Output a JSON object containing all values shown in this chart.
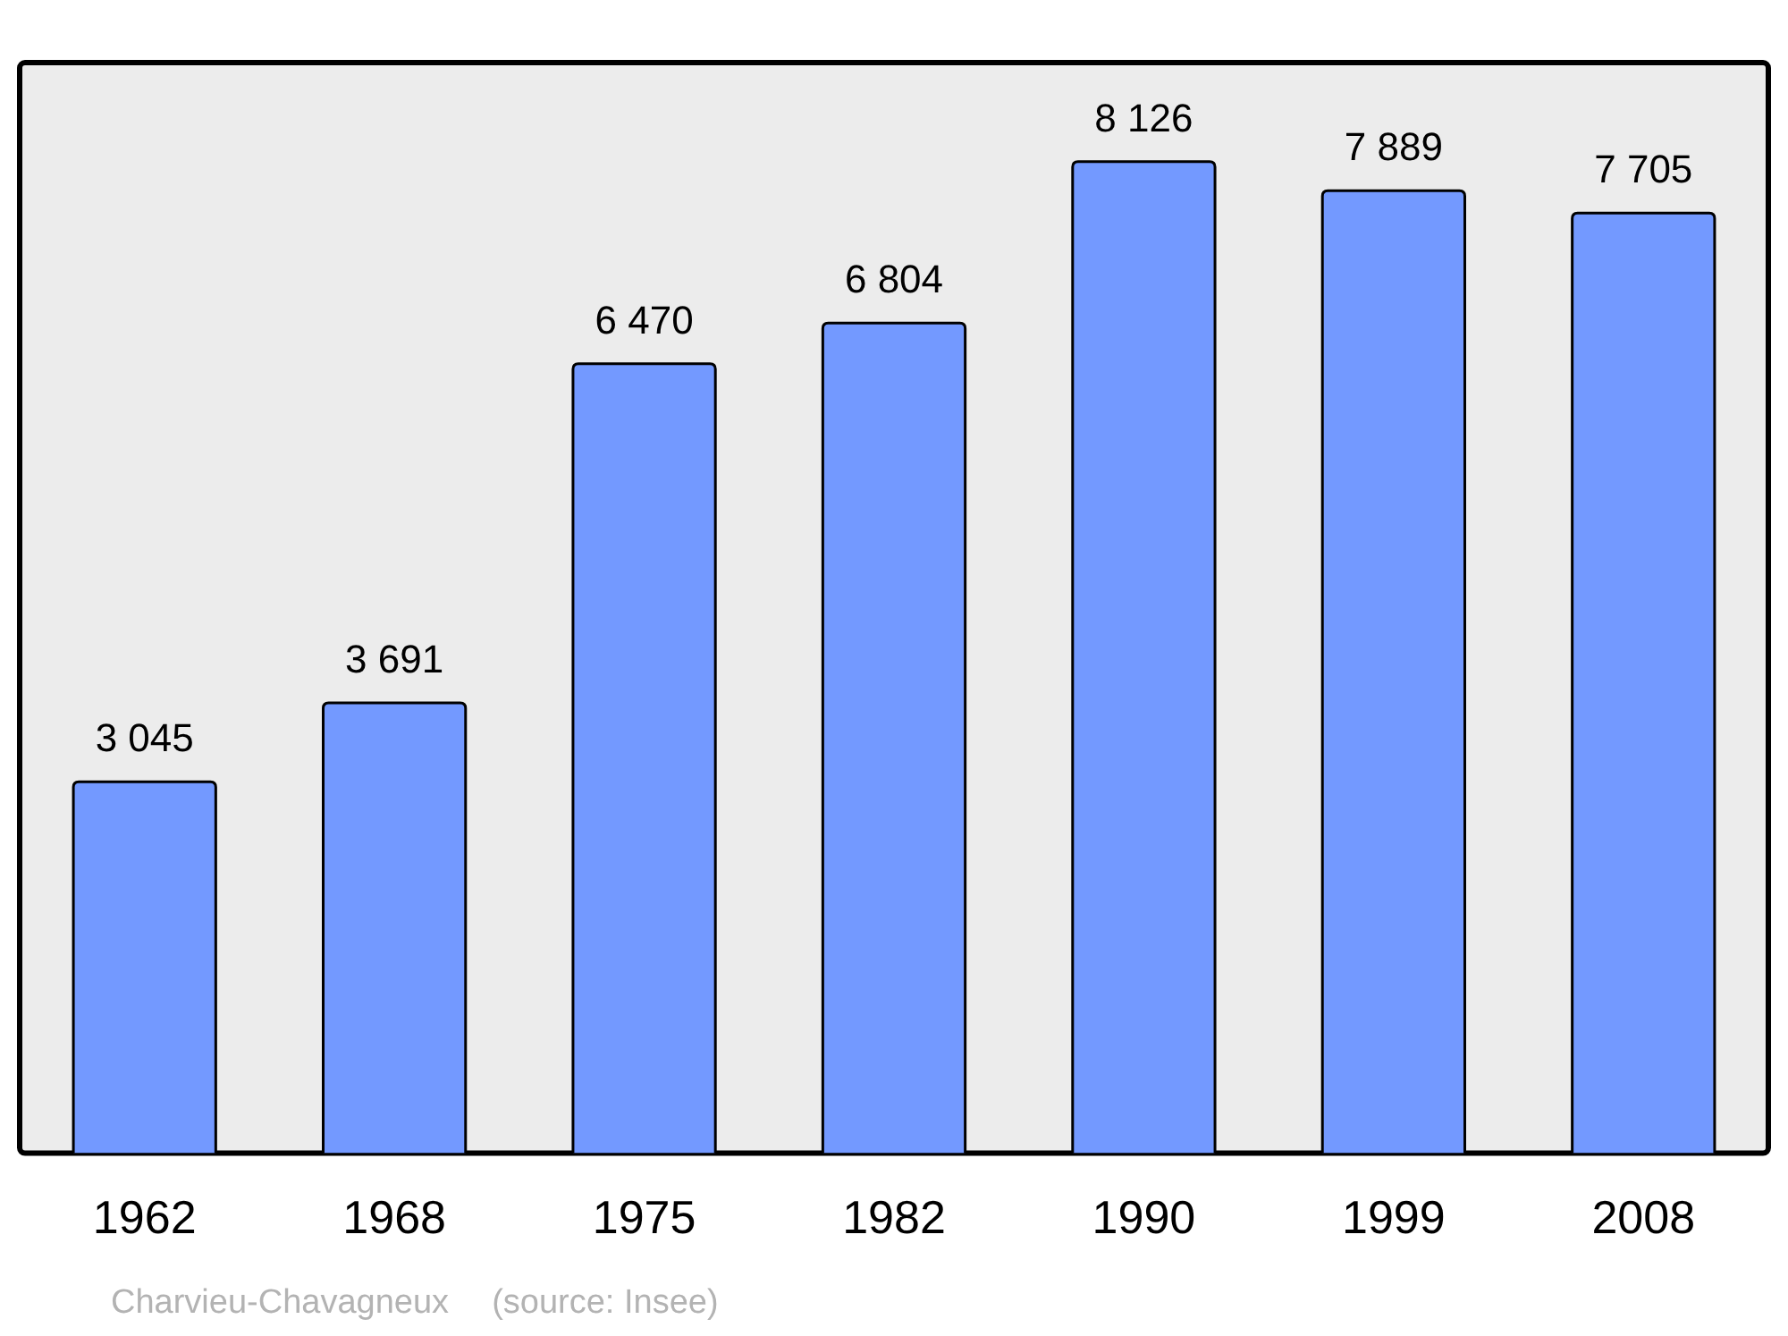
{
  "chart_data": {
    "type": "bar",
    "categories": [
      "1962",
      "1968",
      "1975",
      "1982",
      "1990",
      "1999",
      "2008"
    ],
    "values": [
      3045,
      3691,
      6470,
      6804,
      8126,
      7889,
      7705
    ],
    "value_labels": [
      "3 045",
      "3 691",
      "6 470",
      "6 804",
      "8 126",
      "7 889",
      "7 705"
    ],
    "color": "#7399ff",
    "legend": false,
    "annotations": [
      "Charvieu-Chavagneux",
      "(source: Insee)"
    ]
  }
}
